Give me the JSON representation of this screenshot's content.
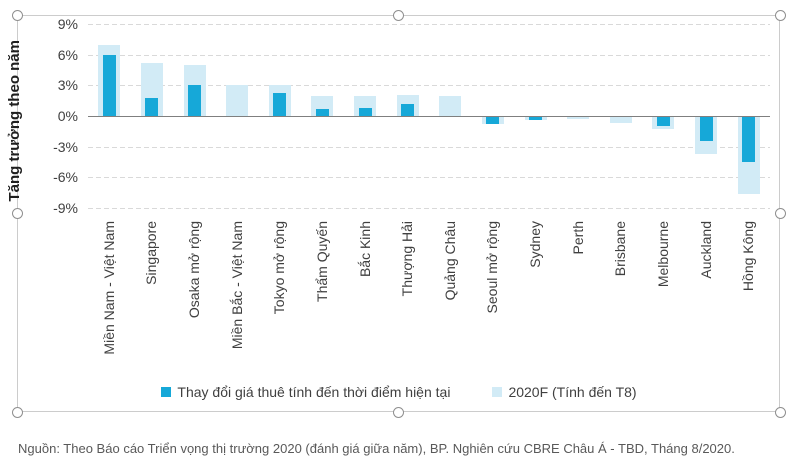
{
  "chart_data": {
    "type": "bar",
    "title": "",
    "ylabel": "Tăng trưởng theo năm",
    "ytick_suffix": "%",
    "yticks": [
      9,
      6,
      3,
      0,
      -3,
      -6,
      -9
    ],
    "ylim": [
      -9,
      9
    ],
    "grid": "horizontal-dashed",
    "legend_position": "bottom",
    "categories": [
      "Miền Nam - Việt Nam",
      "Singapore",
      "Osaka mở rộng",
      "Miền Bắc - Việt Nam",
      "Tokyo mở rộng",
      "Thẩm Quyến",
      "Bắc Kinh",
      "Thượng Hải",
      "Quảng Châu",
      "Seoul mở rộng",
      "Sydney",
      "Perth",
      "Brisbane",
      "Melbourne",
      "Auckland",
      "Hồng Kông"
    ],
    "series": [
      {
        "name": "Thay đổi giá thuê tính đến thời điểm hiện tại",
        "color": "#16a8d8",
        "values": [
          6.0,
          1.8,
          3.0,
          0,
          2.3,
          0.7,
          0.8,
          1.2,
          0,
          -0.7,
          -0.3,
          0,
          0,
          -0.9,
          -2.3,
          -4.4
        ]
      },
      {
        "name": "2020F (Tính đến T8)",
        "color": "#d2ebf6",
        "values": [
          7.0,
          5.2,
          5.0,
          3.0,
          3.0,
          2.0,
          2.0,
          2.1,
          2.0,
          -0.7,
          -0.3,
          -0.2,
          -0.6,
          -1.2,
          -3.6,
          -7.5
        ]
      }
    ]
  },
  "colors": {
    "spellcheck_red": "#e8261f",
    "axis_line": "#7f7f7f",
    "gridline": "#d9d9d9"
  },
  "source_note": {
    "full_text": "Nguồn: Theo Báo cáo Triển vọng thị trường 2020 (đánh giá giữa năm), BP. Nghiên cứu CBRE Châu Á - TBD, Tháng 8/2020.",
    "segments": [
      {
        "t": "Nguồn",
        "sq": true
      },
      {
        "t": ": Theo ",
        "sq": false
      },
      {
        "t": "Báo",
        "sq": true
      },
      {
        "t": " ",
        "sq": false
      },
      {
        "t": "cáo",
        "sq": true
      },
      {
        "t": " ",
        "sq": false
      },
      {
        "t": "Triển",
        "sq": true
      },
      {
        "t": " ",
        "sq": false
      },
      {
        "t": "vọng",
        "sq": true
      },
      {
        "t": " ",
        "sq": false
      },
      {
        "t": "thị",
        "sq": true
      },
      {
        "t": " ",
        "sq": false
      },
      {
        "t": "trường",
        "sq": true
      },
      {
        "t": " 2020 (",
        "sq": false
      },
      {
        "t": "đánh",
        "sq": true
      },
      {
        "t": " ",
        "sq": false
      },
      {
        "t": "giá",
        "sq": true
      },
      {
        "t": " ",
        "sq": false
      },
      {
        "t": "giữa",
        "sq": true
      },
      {
        "t": " ",
        "sq": false
      },
      {
        "t": "năm",
        "sq": true
      },
      {
        "t": "), BP. Nghiên ",
        "sq": false
      },
      {
        "t": "cứu",
        "sq": true
      },
      {
        "t": " CBRE ",
        "sq": false
      },
      {
        "t": "Châu",
        "sq": true
      },
      {
        "t": " ",
        "sq": false
      },
      {
        "t": "Á",
        "sq": true
      },
      {
        "t": " - TBD, ",
        "sq": false
      },
      {
        "t": "Tháng",
        "sq": true
      },
      {
        "t": " 8/2020.",
        "sq": false
      }
    ]
  }
}
